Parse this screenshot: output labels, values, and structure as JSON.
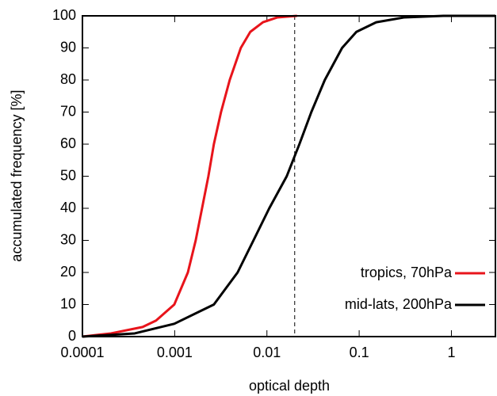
{
  "chart_data": {
    "type": "line",
    "x_label": "optical depth",
    "y_label": "accumulated frequency [%]",
    "xscale": "log",
    "xlim": [
      0.0001,
      3
    ],
    "xticks": [
      0.0001,
      0.001,
      0.01,
      0.1,
      1
    ],
    "ylim": [
      0,
      100
    ],
    "yticks": [
      0,
      10,
      20,
      30,
      40,
      50,
      60,
      70,
      80,
      90,
      100
    ],
    "vline": {
      "x": 0.02,
      "color": "#000000",
      "style": "dashed"
    },
    "legend": "lower right",
    "series": [
      {
        "name": "tropics, 70hPa",
        "color": "#e8141b",
        "x": [
          0.0001,
          0.000204,
          0.000449,
          0.000628,
          0.00099,
          0.00139,
          0.00169,
          0.00198,
          0.00232,
          0.00266,
          0.00318,
          0.00395,
          0.00521,
          0.0066,
          0.00906,
          0.0129,
          0.0212
        ],
        "values": [
          0,
          1,
          3,
          5,
          10,
          20,
          30,
          40,
          50,
          60,
          70,
          80,
          90,
          95,
          98,
          99.5,
          100
        ]
      },
      {
        "name": "mid-lats, 200hPa",
        "color": "#000000",
        "x": [
          0.0001,
          0.000369,
          0.00099,
          0.00266,
          0.00481,
          0.00715,
          0.0106,
          0.0164,
          0.0225,
          0.0303,
          0.0424,
          0.0653,
          0.0933,
          0.153,
          0.305,
          0.82,
          3
        ],
        "values": [
          0,
          1,
          4,
          10,
          20,
          30,
          40,
          50,
          60,
          70,
          80,
          90,
          95,
          98,
          99.5,
          100,
          100
        ]
      }
    ]
  }
}
